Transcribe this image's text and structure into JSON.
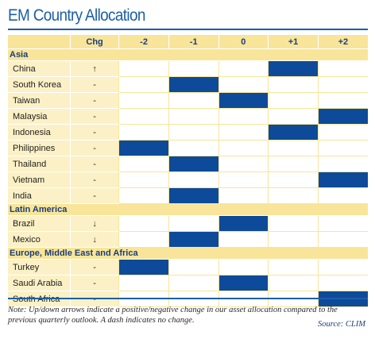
{
  "title": "EM Country Allocation",
  "columns": {
    "chg": "Chg",
    "ratings": [
      "-2",
      "-1",
      "0",
      "+1",
      "+2"
    ]
  },
  "colors": {
    "accent": "#1b5fa6",
    "header": "#f8e59a",
    "row": "#fcf1c6",
    "fill": "#0e4a9a"
  },
  "regions": [
    {
      "name": "Asia",
      "rows": [
        {
          "country": "China",
          "chg": "↑",
          "rating": "+1"
        },
        {
          "country": "South Korea",
          "chg": "-",
          "rating": "-1"
        },
        {
          "country": "Taiwan",
          "chg": "-",
          "rating": "0"
        },
        {
          "country": "Malaysia",
          "chg": "-",
          "rating": "+2"
        },
        {
          "country": "Indonesia",
          "chg": "-",
          "rating": "+1"
        },
        {
          "country": "Philippines",
          "chg": "-",
          "rating": "-2"
        },
        {
          "country": "Thailand",
          "chg": "-",
          "rating": "-1"
        },
        {
          "country": "Vietnam",
          "chg": "-",
          "rating": "+2"
        },
        {
          "country": "India",
          "chg": "-",
          "rating": "-1"
        }
      ]
    },
    {
      "name": "Latin America",
      "rows": [
        {
          "country": "Brazil",
          "chg": "↓",
          "rating": "0"
        },
        {
          "country": "Mexico",
          "chg": "↓",
          "rating": "-1"
        }
      ]
    },
    {
      "name": "Europe, Middle East and Africa",
      "rows": [
        {
          "country": "Turkey",
          "chg": "-",
          "rating": "-2"
        },
        {
          "country": "Saudi Arabia",
          "chg": "-",
          "rating": "0"
        },
        {
          "country": "South Africa",
          "chg": "-",
          "rating": "+2"
        }
      ]
    }
  ],
  "note": "Note: Up/down arrows indicate a positive/negative change in our asset allocation compared to the previous quarterly outlook. A dash indicates no change.",
  "source": "Source: CLIM"
}
